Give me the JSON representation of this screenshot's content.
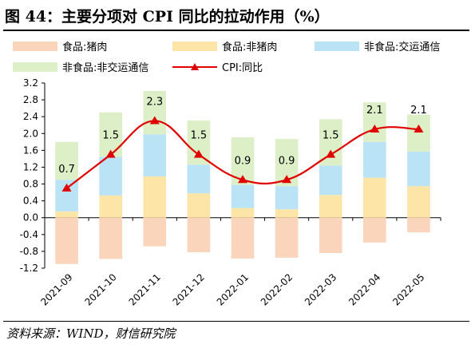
{
  "figure": {
    "title": "图 44：主要分项对 CPI 同比的拉动作用（%）",
    "source": "资料来源：WIND，财信研究院"
  },
  "colors": {
    "pork": "#FAD5BC",
    "food_ex_pork": "#FCE5A7",
    "transport_comm": "#BBE3F6",
    "nonfood_ex_tc": "#DCEFC7",
    "cpi_line": "#E00000",
    "cpi_marker": "#E00000"
  },
  "chart_data": {
    "type": "bar",
    "stacked": true,
    "categories": [
      "2021-09",
      "2021-10",
      "2021-11",
      "2021-12",
      "2022-01",
      "2022-02",
      "2022-03",
      "2022-04",
      "2022-05"
    ],
    "series": [
      {
        "name": "食品:猪肉",
        "kind": "bar",
        "color_key": "pork",
        "values": [
          -1.1,
          -0.98,
          -0.68,
          -0.82,
          -0.97,
          -0.95,
          -0.84,
          -0.59,
          -0.35
        ]
      },
      {
        "name": "食品:非猪肉",
        "kind": "bar",
        "color_key": "food_ex_pork",
        "values": [
          0.15,
          0.53,
          0.98,
          0.58,
          0.23,
          0.2,
          0.54,
          0.95,
          0.75
        ]
      },
      {
        "name": "非食品:交运通信",
        "kind": "bar",
        "color_key": "transport_comm",
        "values": [
          0.75,
          0.92,
          1.0,
          0.68,
          0.55,
          0.55,
          0.7,
          0.85,
          0.82
        ]
      },
      {
        "name": "非食品:非交运通信",
        "kind": "bar",
        "color_key": "nonfood_ex_tc",
        "values": [
          0.9,
          1.05,
          1.03,
          1.05,
          1.13,
          1.12,
          1.1,
          0.94,
          0.88
        ]
      },
      {
        "name": "CPI:同比",
        "kind": "line",
        "color_key": "cpi_line",
        "values": [
          0.7,
          1.5,
          2.3,
          1.5,
          0.9,
          0.9,
          1.5,
          2.1,
          2.1
        ]
      }
    ],
    "data_labels": [
      "0.7",
      "1.5",
      "2.3",
      "1.5",
      "0.9",
      "0.9",
      "1.5",
      "2.1",
      "2.1"
    ],
    "yticks": [
      "3.2",
      "2.8",
      "2.4",
      "2.0",
      "1.6",
      "1.2",
      "0.8",
      "0.4",
      "0.0",
      "-0.4",
      "-0.8",
      "-1.2"
    ],
    "ylim": [
      -1.2,
      3.2
    ],
    "xlabel": "",
    "ylabel": "",
    "grid": false,
    "legend_position": "top"
  }
}
